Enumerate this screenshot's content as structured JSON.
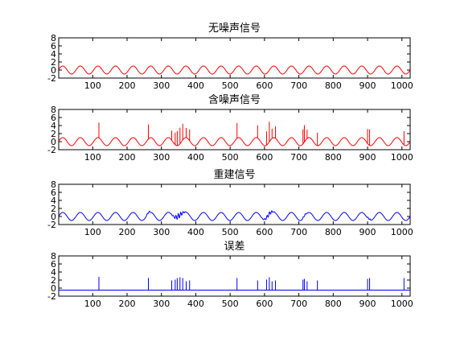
{
  "colors": {
    "red": "#ff0000",
    "blue": "#0000ff",
    "axis": "#000000",
    "background": "#ffffff"
  },
  "chart_data": [
    {
      "type": "line",
      "title": "无噪声信号",
      "xlabel": "",
      "ylabel": "",
      "xlim": [
        1,
        1024
      ],
      "ylim": [
        -2,
        8
      ],
      "xticks": [
        100,
        200,
        300,
        400,
        500,
        600,
        700,
        800,
        900,
        1000
      ],
      "yticks": [
        -2,
        0,
        2,
        4,
        6,
        8
      ],
      "series": [
        {
          "color": "red",
          "formula": "sin",
          "amplitude": 1,
          "period": 51.2,
          "phase_x": 0,
          "spikes": [],
          "bumps": []
        }
      ]
    },
    {
      "type": "line",
      "title": "含噪声信号",
      "xlabel": "",
      "ylabel": "",
      "xlim": [
        1,
        1024
      ],
      "ylim": [
        -2,
        8
      ],
      "xticks": [
        100,
        200,
        300,
        400,
        500,
        600,
        700,
        800,
        900,
        1000
      ],
      "yticks": [
        -2,
        0,
        2,
        4,
        6,
        8
      ],
      "series": [
        {
          "color": "red",
          "formula": "sin",
          "amplitude": 1,
          "period": 51.2,
          "phase_x": 0,
          "spikes": [
            {
              "x": 118,
              "h": 3.8
            },
            {
              "x": 262,
              "h": 3.6
            },
            {
              "x": 330,
              "h": 2.4
            },
            {
              "x": 340,
              "h": 3.0
            },
            {
              "x": 346,
              "h": 3.6
            },
            {
              "x": 354,
              "h": 4.0
            },
            {
              "x": 362,
              "h": 4.0
            },
            {
              "x": 372,
              "h": 2.4
            },
            {
              "x": 382,
              "h": 2.8
            },
            {
              "x": 520,
              "h": 3.8
            },
            {
              "x": 580,
              "h": 3.2
            },
            {
              "x": 606,
              "h": 3.4
            },
            {
              "x": 614,
              "h": 5.0
            },
            {
              "x": 622,
              "h": 2.4
            },
            {
              "x": 632,
              "h": 3.0
            },
            {
              "x": 712,
              "h": 3.6
            },
            {
              "x": 716,
              "h": 4.2
            },
            {
              "x": 724,
              "h": 2.2
            },
            {
              "x": 754,
              "h": 3.2
            },
            {
              "x": 900,
              "h": 3.6
            },
            {
              "x": 906,
              "h": 4.0
            },
            {
              "x": 1006,
              "h": 3.4
            }
          ],
          "bumps": []
        }
      ]
    },
    {
      "type": "line",
      "title": "重建信号",
      "xlabel": "",
      "ylabel": "",
      "xlim": [
        1,
        1024
      ],
      "ylim": [
        -2,
        8
      ],
      "xticks": [
        100,
        200,
        300,
        400,
        500,
        600,
        700,
        800,
        900,
        1000
      ],
      "yticks": [
        -2,
        0,
        2,
        4,
        6,
        8
      ],
      "series": [
        {
          "color": "blue",
          "formula": "sin",
          "amplitude": 1,
          "period": 51.2,
          "phase_x": 0,
          "spikes": [],
          "bumps": [
            {
              "x": 262,
              "h": 0.6,
              "w": 5
            },
            {
              "x": 350,
              "h": 1.6,
              "w": 14
            },
            {
              "x": 612,
              "h": 1.2,
              "w": 12
            },
            {
              "x": 716,
              "h": 0.6,
              "w": 5
            },
            {
              "x": 904,
              "h": 0.6,
              "w": 5
            }
          ]
        }
      ]
    },
    {
      "type": "line",
      "title": "误差",
      "xlabel": "",
      "ylabel": "",
      "xlim": [
        1,
        1024
      ],
      "ylim": [
        -2,
        8
      ],
      "xticks": [
        100,
        200,
        300,
        400,
        500,
        600,
        700,
        800,
        900,
        1000
      ],
      "yticks": [
        -2,
        0,
        2,
        4,
        6,
        8
      ],
      "series": [
        {
          "color": "blue",
          "formula": "baseline",
          "baseline": -0.5,
          "spikes": [
            {
              "x": 118,
              "h": 3.3
            },
            {
              "x": 262,
              "h": 3.0
            },
            {
              "x": 330,
              "h": 2.4
            },
            {
              "x": 340,
              "h": 2.6
            },
            {
              "x": 346,
              "h": 3.0
            },
            {
              "x": 354,
              "h": 3.2
            },
            {
              "x": 362,
              "h": 3.0
            },
            {
              "x": 372,
              "h": 2.2
            },
            {
              "x": 382,
              "h": 2.4
            },
            {
              "x": 520,
              "h": 3.0
            },
            {
              "x": 580,
              "h": 2.4
            },
            {
              "x": 606,
              "h": 2.6
            },
            {
              "x": 614,
              "h": 3.2
            },
            {
              "x": 622,
              "h": 2.2
            },
            {
              "x": 632,
              "h": 2.4
            },
            {
              "x": 712,
              "h": 2.6
            },
            {
              "x": 716,
              "h": 2.8
            },
            {
              "x": 724,
              "h": 2.2
            },
            {
              "x": 754,
              "h": 2.4
            },
            {
              "x": 900,
              "h": 2.8
            },
            {
              "x": 906,
              "h": 3.0
            },
            {
              "x": 1006,
              "h": 3.0
            }
          ]
        }
      ]
    }
  ]
}
